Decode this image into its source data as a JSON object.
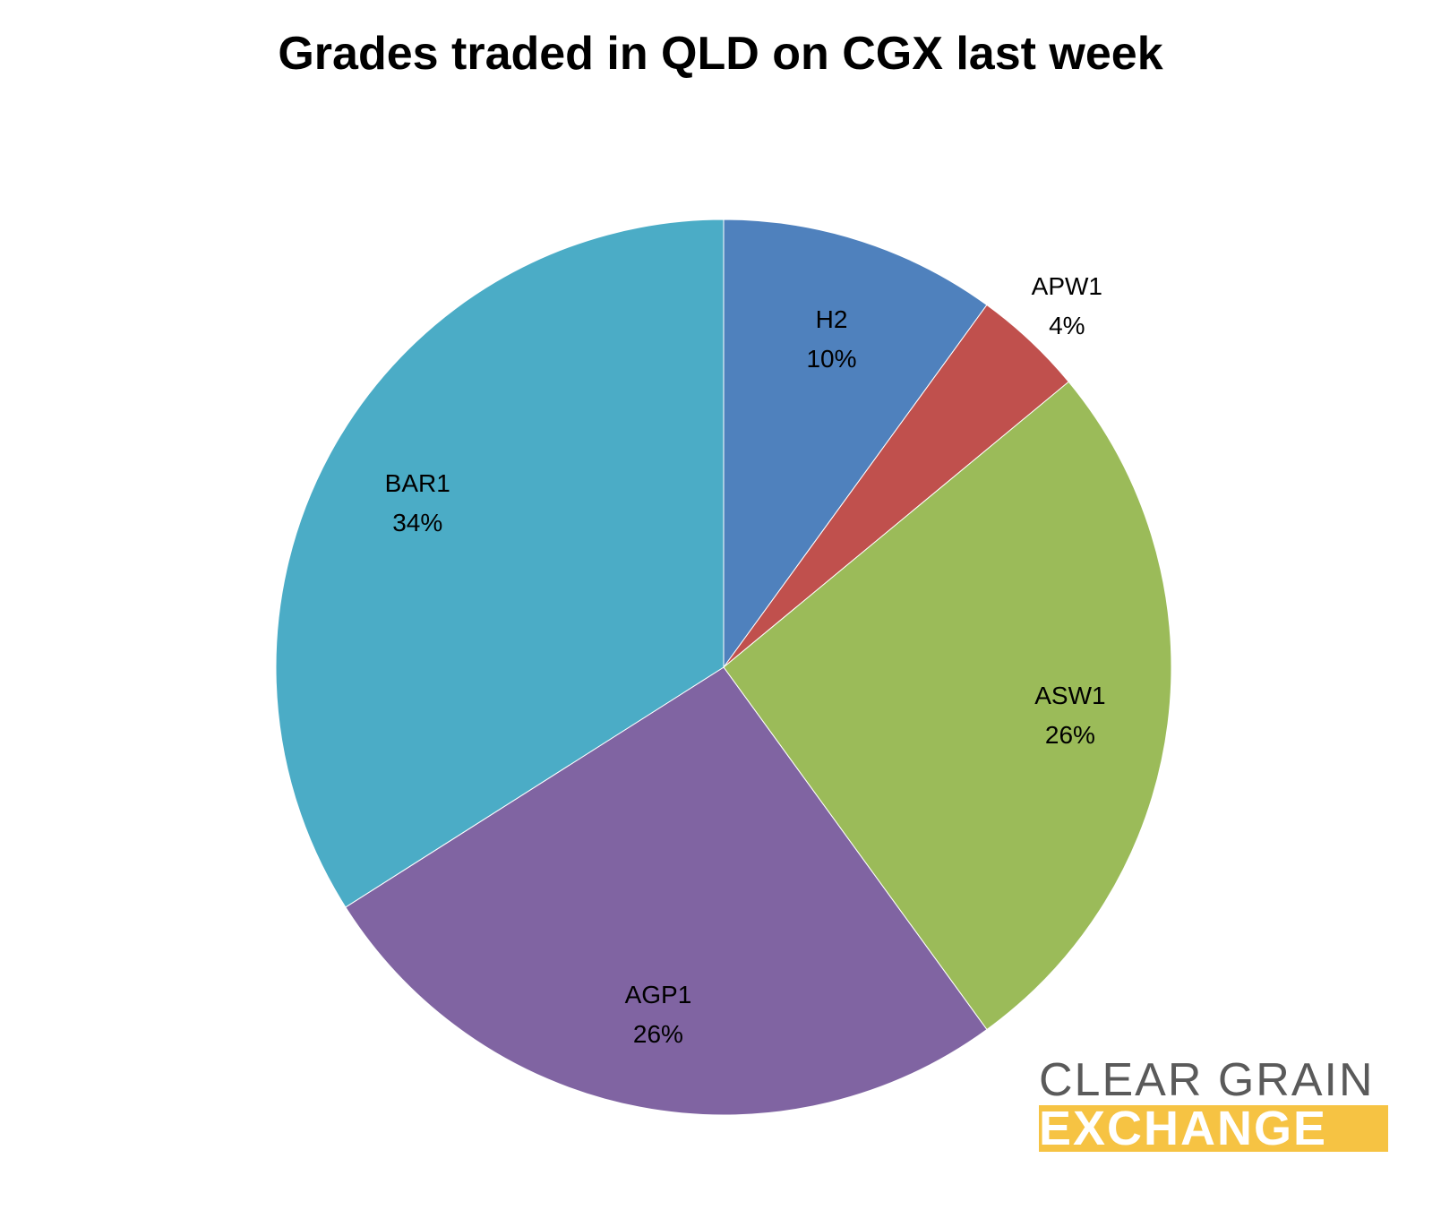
{
  "chart_data": {
    "type": "pie",
    "title": "Grades traded in QLD on CGX last week",
    "start_angle_deg": 0,
    "direction": "clockwise",
    "slices": [
      {
        "label": "H2",
        "value": 10,
        "pct_label": "10%",
        "color": "#4F81BD"
      },
      {
        "label": "APW1",
        "value": 4,
        "pct_label": "4%",
        "color": "#C0504D"
      },
      {
        "label": "ASW1",
        "value": 26,
        "pct_label": "26%",
        "color": "#9BBB59"
      },
      {
        "label": "AGP1",
        "value": 26,
        "pct_label": "26%",
        "color": "#8064A2"
      },
      {
        "label": "BAR1",
        "value": 34,
        "pct_label": "34%",
        "color": "#4BACC6"
      }
    ]
  },
  "logo": {
    "line1": "CLEAR GRAIN",
    "line2": "EXCHANGE",
    "line1_color": "#5a5a5a",
    "line2_bg_color": "#f6c343"
  }
}
